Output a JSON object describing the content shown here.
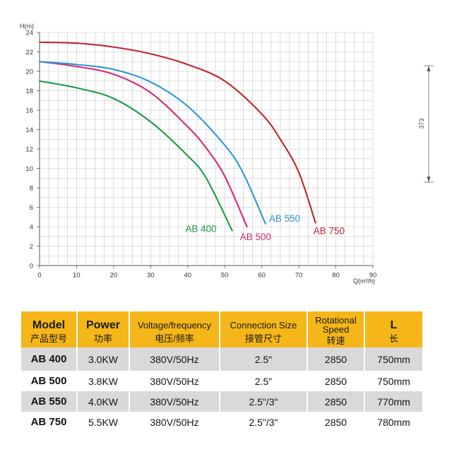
{
  "chart_data": {
    "type": "line",
    "xlabel": "Q(m³/h)",
    "ylabel": "H(m)",
    "xlim": [
      0,
      90
    ],
    "ylim": [
      0,
      24
    ],
    "xticks": [
      0,
      10,
      20,
      30,
      40,
      50,
      60,
      70,
      80,
      90
    ],
    "yticks": [
      0,
      2,
      4,
      6,
      8,
      10,
      12,
      14,
      16,
      18,
      20,
      22,
      24
    ],
    "grid": true,
    "series": [
      {
        "name": "AB 400",
        "color": "#1f9a4f",
        "x": [
          0,
          10,
          20,
          30,
          40,
          45,
          52
        ],
        "y": [
          19.0,
          18.3,
          17.2,
          14.8,
          11.3,
          9.0,
          3.6
        ]
      },
      {
        "name": "AB 500",
        "color": "#d62a72",
        "x": [
          0,
          10,
          20,
          30,
          40,
          45,
          50,
          56
        ],
        "y": [
          21.0,
          20.5,
          19.7,
          17.8,
          14.3,
          12.1,
          9.2,
          4.0
        ]
      },
      {
        "name": "AB 550",
        "color": "#2a97d5",
        "x": [
          0,
          10,
          20,
          30,
          40,
          50,
          55,
          61
        ],
        "y": [
          21.0,
          20.7,
          20.2,
          18.9,
          16.4,
          12.4,
          9.5,
          4.3
        ]
      },
      {
        "name": "AB 750",
        "color": "#c0262d",
        "x": [
          0,
          10,
          20,
          30,
          40,
          50,
          60,
          65,
          70,
          74.5
        ],
        "y": [
          23.0,
          22.9,
          22.5,
          21.8,
          20.7,
          19.0,
          15.6,
          13.0,
          9.6,
          4.4
        ]
      }
    ]
  },
  "dimension": {
    "label": "373"
  },
  "table": {
    "header_color": "#f5b61a",
    "stripe_color": "#d9d9d9",
    "headers": [
      {
        "en": "Model",
        "zh": "产品型号"
      },
      {
        "en": "Power",
        "zh": "功率"
      },
      {
        "en": "Voltage/frequency",
        "zh": "电压/频率"
      },
      {
        "en": "Connection Size",
        "zh": "接管尺寸"
      },
      {
        "en": "Rotational Speed",
        "zh": "转速"
      },
      {
        "en": "L",
        "zh": "长"
      }
    ],
    "rows": [
      [
        "AB 400",
        "3.0KW",
        "380V/50Hz",
        "2.5\"",
        "2850",
        "750mm"
      ],
      [
        "AB 500",
        "3.8KW",
        "380V/50Hz",
        "2.5\"",
        "2850",
        "750mm"
      ],
      [
        "AB 550",
        "4.0KW",
        "380V/50Hz",
        "2.5\"/3\"",
        "2850",
        "770mm"
      ],
      [
        "AB 750",
        "5.5KW",
        "380V/50Hz",
        "2.5\"/3\"",
        "2850",
        "780mm"
      ]
    ]
  }
}
